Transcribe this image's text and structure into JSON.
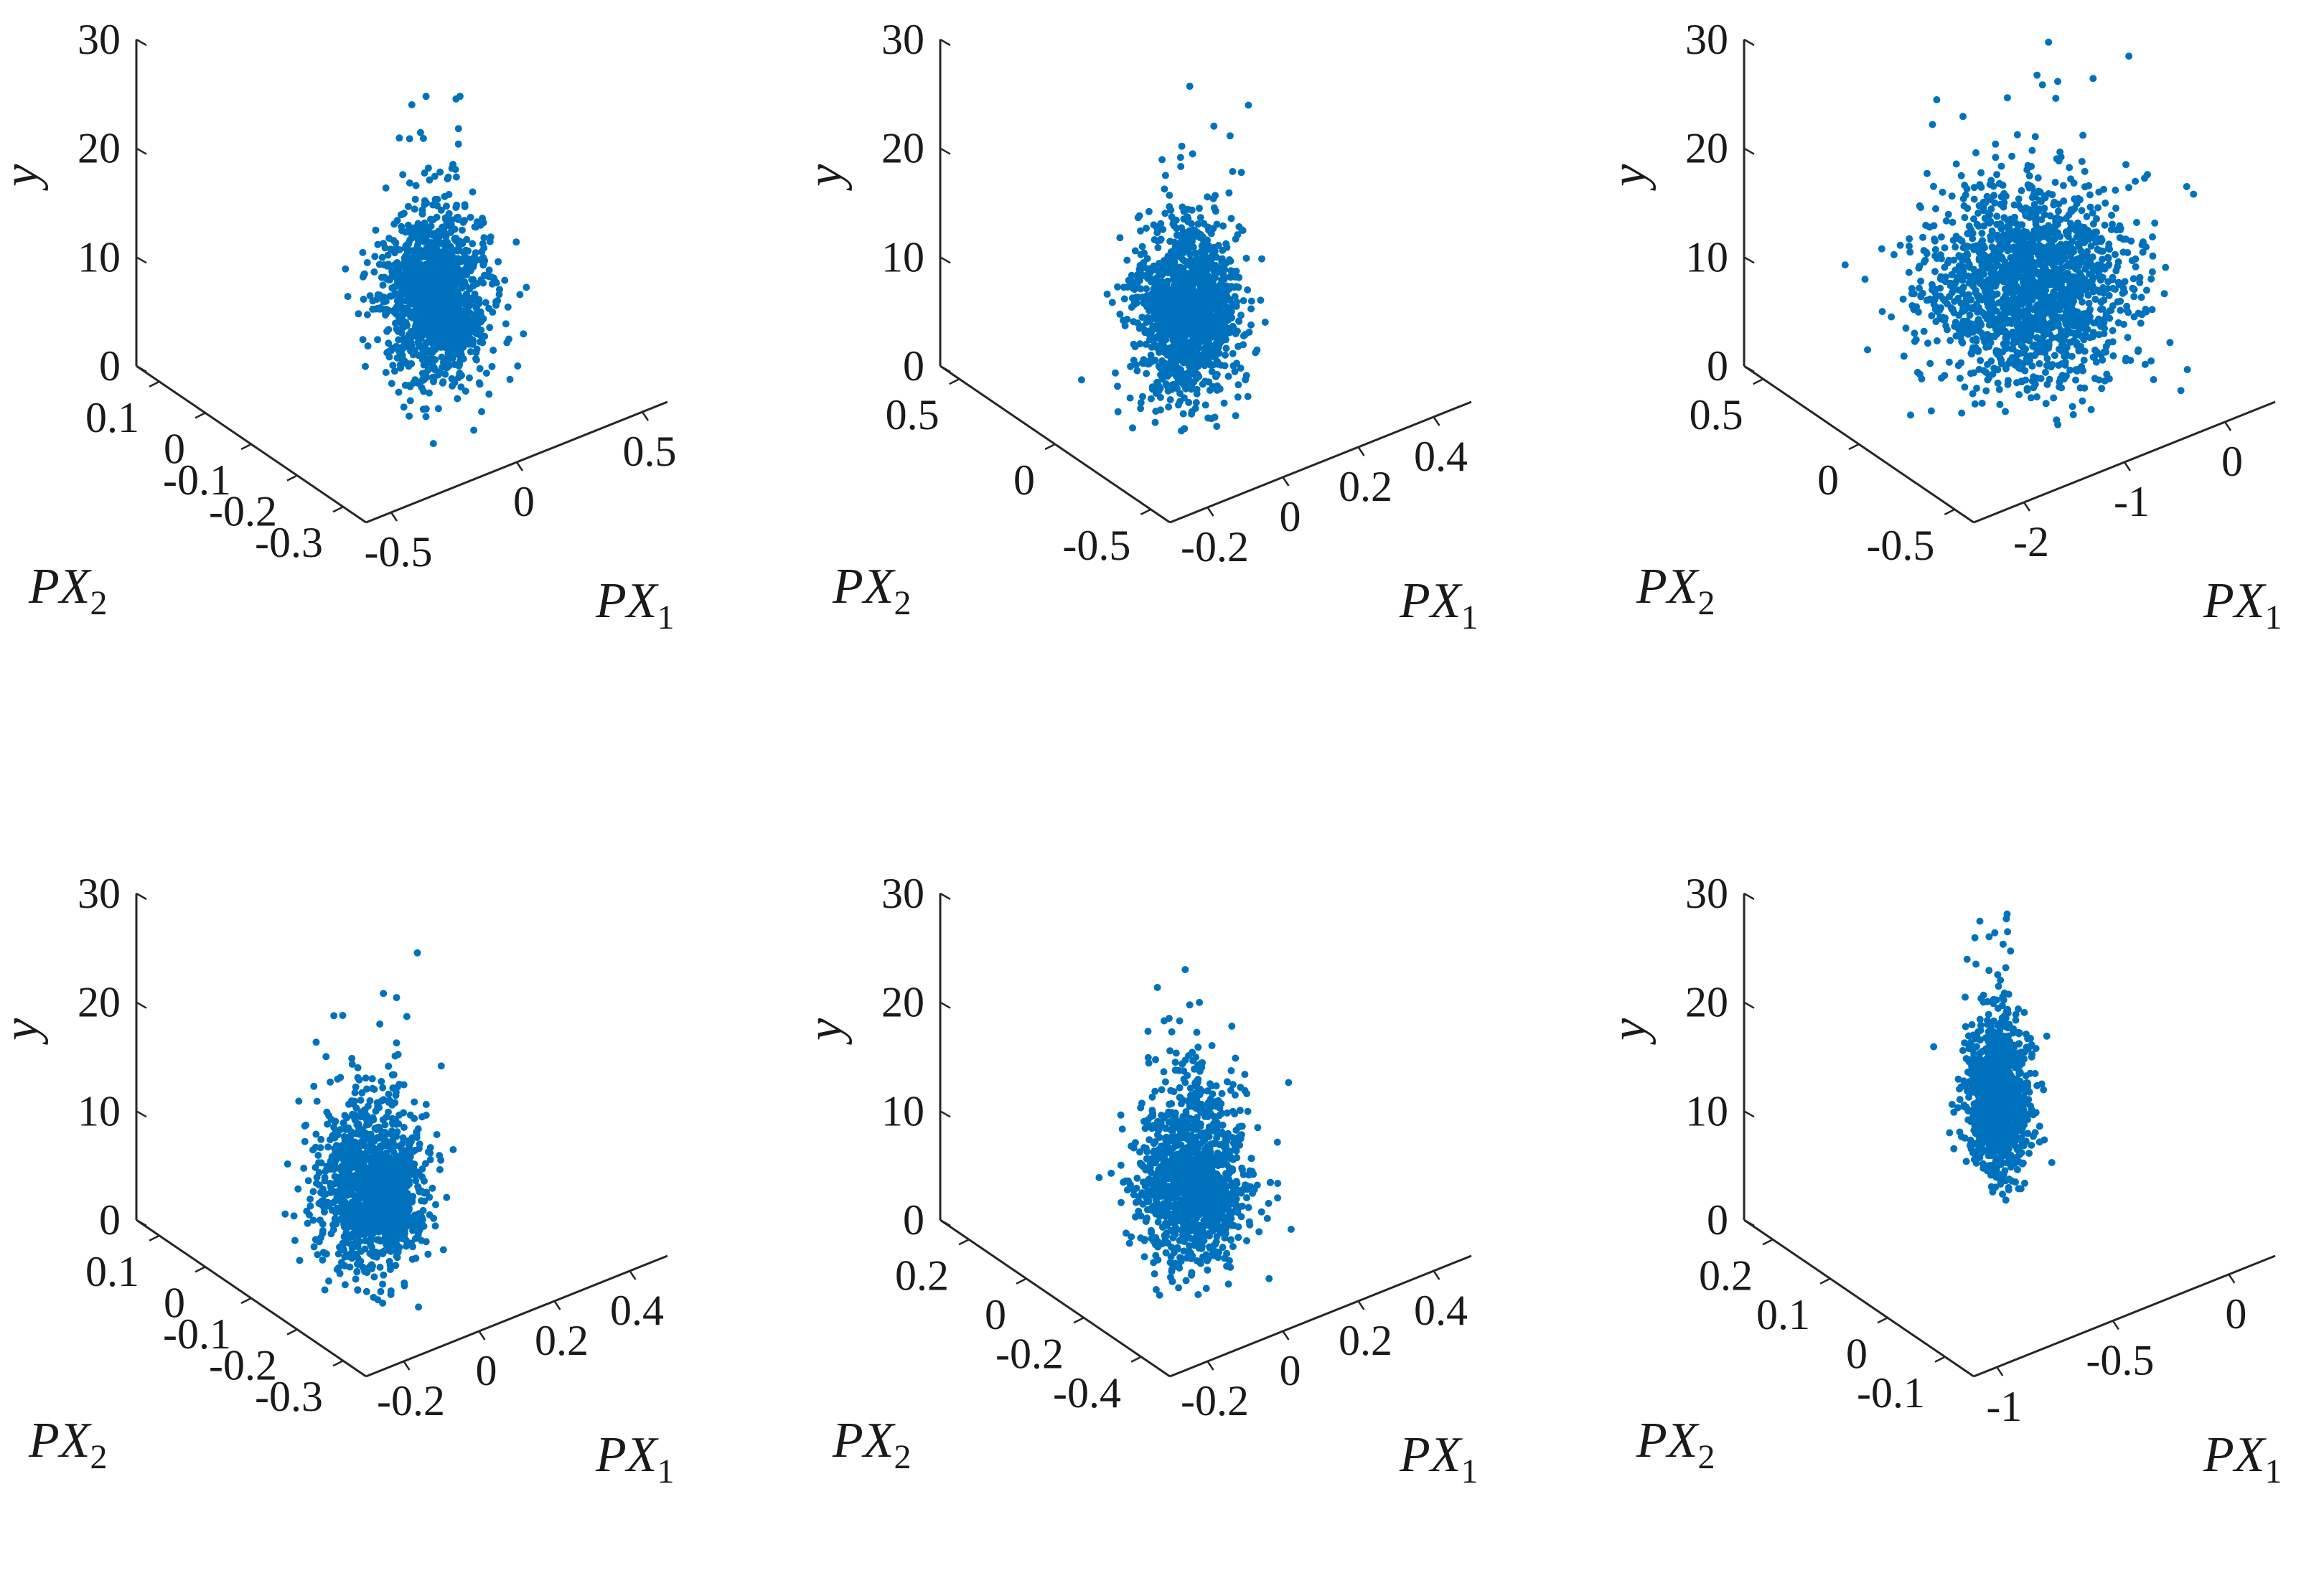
{
  "chart_data": [
    {
      "type": "scatter",
      "xlabel": "PX",
      "xlabel_sub": "1",
      "ylabel": "PX",
      "ylabel_sub": "2",
      "zlabel": "y",
      "xlim": [
        -0.6,
        0.6
      ],
      "xticks": [
        -0.5,
        0,
        0.5
      ],
      "xtick_labels": [
        "-0.5",
        "0",
        "0.5"
      ],
      "ylim": [
        -0.35,
        0.15
      ],
      "yticks": [
        -0.3,
        -0.2,
        -0.1,
        0,
        0.1
      ],
      "ytick_labels": [
        "-0.3",
        "-0.2",
        "-0.1",
        "0",
        "0.1"
      ],
      "zlim": [
        0,
        30
      ],
      "zticks": [
        0,
        10,
        20,
        30
      ],
      "ztick_labels": [
        "0",
        "10",
        "20",
        "30"
      ],
      "color": "#0072BD",
      "cluster": {
        "x_center": -0.05,
        "y_center": 0.0,
        "z_center": 11,
        "n_points": 1600
      }
    },
    {
      "type": "scatter",
      "xlabel": "PX",
      "xlabel_sub": "1",
      "ylabel": "PX",
      "ylabel_sub": "2",
      "zlabel": "y",
      "xlim": [
        -0.3,
        0.5
      ],
      "xticks": [
        -0.2,
        0,
        0.2,
        0.4
      ],
      "xtick_labels": [
        "-0.2",
        "0",
        "0.2",
        "0.4"
      ],
      "ylim": [
        -0.6,
        0.6
      ],
      "yticks": [
        -0.5,
        0,
        0.5
      ],
      "ytick_labels": [
        "-0.5",
        "0",
        "0.5"
      ],
      "zlim": [
        0,
        30
      ],
      "zticks": [
        0,
        10,
        20,
        30
      ],
      "ztick_labels": [
        "0",
        "10",
        "20",
        "30"
      ],
      "color": "#0072BD",
      "cluster": {
        "x_center": 0.0,
        "y_center": 0.1,
        "z_center": 9,
        "n_points": 1600
      }
    },
    {
      "type": "scatter",
      "xlabel": "PX",
      "xlabel_sub": "1",
      "ylabel": "PX",
      "ylabel_sub": "2",
      "zlabel": "y",
      "xlim": [
        -2.5,
        0.5
      ],
      "xticks": [
        -2,
        -1,
        0
      ],
      "xtick_labels": [
        "-2",
        "-1",
        "0"
      ],
      "ylim": [
        -0.6,
        0.6
      ],
      "yticks": [
        -0.5,
        0,
        0.5
      ],
      "ytick_labels": [
        "-0.5",
        "0",
        "0.5"
      ],
      "zlim": [
        0,
        30
      ],
      "zticks": [
        0,
        10,
        20,
        30
      ],
      "ztick_labels": [
        "0",
        "10",
        "20",
        "30"
      ],
      "color": "#0072BD",
      "cluster": {
        "x_center": -1.0,
        "y_center": 0.1,
        "z_center": 10,
        "n_points": 1700
      }
    },
    {
      "type": "scatter",
      "xlabel": "PX",
      "xlabel_sub": "1",
      "ylabel": "PX",
      "ylabel_sub": "2",
      "zlabel": "y",
      "xlim": [
        -0.3,
        0.5
      ],
      "xticks": [
        -0.2,
        0,
        0.2,
        0.4
      ],
      "xtick_labels": [
        "-0.2",
        "0",
        "0.2",
        "0.4"
      ],
      "ylim": [
        -0.35,
        0.15
      ],
      "yticks": [
        -0.3,
        -0.2,
        -0.1,
        0,
        0.1
      ],
      "ytick_labels": [
        "-0.3",
        "-0.2",
        "-0.1",
        "0",
        "0.1"
      ],
      "zlim": [
        0,
        30
      ],
      "zticks": [
        0,
        10,
        20,
        30
      ],
      "ztick_labels": [
        "0",
        "10",
        "20",
        "30"
      ],
      "color": "#0072BD",
      "cluster": {
        "x_center": -0.1,
        "y_center": 0.0,
        "z_center": 10,
        "n_points": 1600
      }
    },
    {
      "type": "scatter",
      "xlabel": "PX",
      "xlabel_sub": "1",
      "ylabel": "PX",
      "ylabel_sub": "2",
      "zlabel": "y",
      "xlim": [
        -0.3,
        0.5
      ],
      "xticks": [
        -0.2,
        0,
        0.2,
        0.4
      ],
      "xtick_labels": [
        "-0.2",
        "0",
        "0.2",
        "0.4"
      ],
      "ylim": [
        -0.5,
        0.3
      ],
      "yticks": [
        -0.4,
        -0.2,
        0,
        0.2
      ],
      "ytick_labels": [
        "-0.4",
        "-0.2",
        "0",
        "0.2"
      ],
      "zlim": [
        0,
        30
      ],
      "zticks": [
        0,
        10,
        20,
        30
      ],
      "ztick_labels": [
        "0",
        "10",
        "20",
        "30"
      ],
      "color": "#0072BD",
      "cluster": {
        "x_center": -0.05,
        "y_center": 0.05,
        "z_center": 10,
        "n_points": 1600
      }
    },
    {
      "type": "scatter",
      "xlabel": "PX",
      "xlabel_sub": "1",
      "ylabel": "PX",
      "ylabel_sub": "2",
      "zlabel": "y",
      "xlim": [
        -1.1,
        0.2
      ],
      "xticks": [
        -1,
        -0.5,
        0
      ],
      "xtick_labels": [
        "-1",
        "-0.5",
        "0"
      ],
      "ylim": [
        -0.15,
        0.25
      ],
      "yticks": [
        -0.1,
        0,
        0.1,
        0.2
      ],
      "ytick_labels": [
        "-0.1",
        "0",
        "0.1",
        "0.2"
      ],
      "zlim": [
        0,
        30
      ],
      "zticks": [
        0,
        10,
        20,
        30
      ],
      "ztick_labels": [
        "0",
        "10",
        "20",
        "30"
      ],
      "color": "#0072BD",
      "cluster": {
        "x_center": -0.5,
        "y_center": 0.05,
        "z_center": 13,
        "n_points": 1200
      }
    }
  ]
}
